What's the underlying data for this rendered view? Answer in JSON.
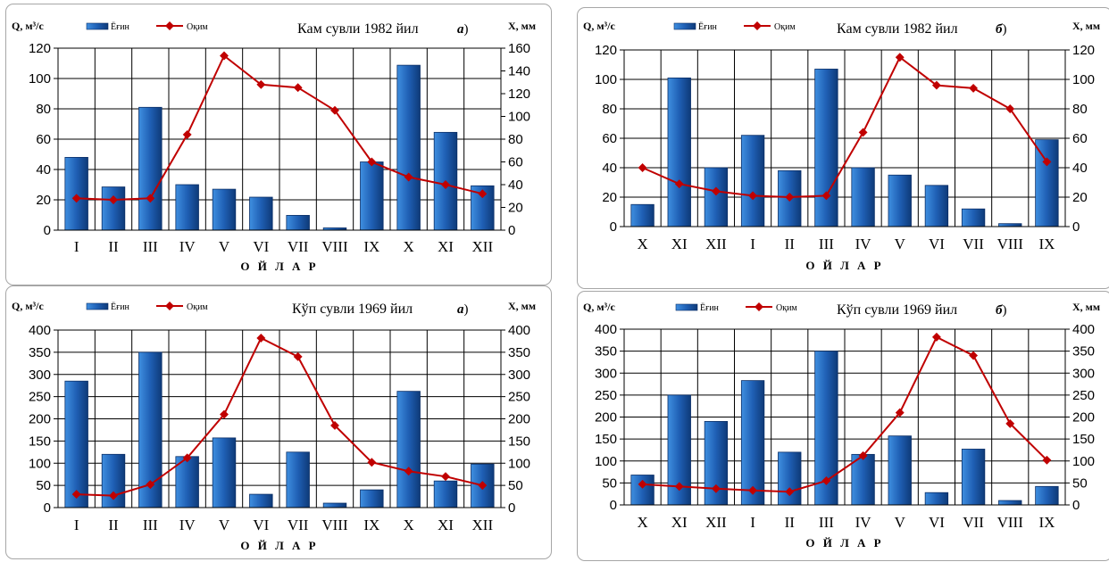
{
  "chart_data": [
    {
      "type": "bar",
      "title": "Кам сувли 1982 йил",
      "tag": "а",
      "ylabel_left": "Q, м³/с",
      "ylabel_right": "X, мм",
      "xlabel": "О Й Л А Р",
      "categories": [
        "I",
        "II",
        "III",
        "IV",
        "V",
        "VI",
        "VII",
        "VIII",
        "IX",
        "X",
        "XI",
        "XII"
      ],
      "ylim_left": [
        0,
        120
      ],
      "yticks_left": [
        0,
        20,
        40,
        60,
        80,
        100,
        120
      ],
      "ylim_right": [
        0,
        160
      ],
      "yticks_right": [
        0,
        20,
        40,
        60,
        80,
        100,
        120,
        140,
        160
      ],
      "grid": true,
      "legend_position": "top-left",
      "series": [
        {
          "name": "Ёғин",
          "type": "bar",
          "axis": "right",
          "color": "#1f5fb4",
          "values": [
            64,
            38,
            108,
            40,
            36,
            29,
            13,
            2,
            60,
            145,
            86,
            39
          ]
        },
        {
          "name": "Оқим",
          "type": "line",
          "axis": "left",
          "color": "#c00000",
          "values": [
            21,
            20,
            21,
            63,
            115,
            96,
            94,
            79,
            45,
            35,
            30,
            24
          ]
        }
      ]
    },
    {
      "type": "bar",
      "title": "Кам сувли 1982 йил",
      "tag": "б",
      "ylabel_left": "Q, м³/с",
      "ylabel_right": "X, мм",
      "xlabel": "О Й Л А Р",
      "categories": [
        "X",
        "XI",
        "XII",
        "I",
        "II",
        "III",
        "IV",
        "V",
        "VI",
        "VII",
        "VIII",
        "IX"
      ],
      "ylim_left": [
        0,
        120
      ],
      "yticks_left": [
        0,
        20,
        40,
        60,
        80,
        100,
        120
      ],
      "ylim_right": [
        0,
        120
      ],
      "yticks_right": [
        0,
        20,
        40,
        60,
        80,
        100,
        120
      ],
      "grid": true,
      "legend_position": "top-left",
      "series": [
        {
          "name": "Ёғин",
          "type": "bar",
          "axis": "right",
          "color": "#1f5fb4",
          "values": [
            15,
            101,
            40,
            62,
            38,
            107,
            40,
            35,
            28,
            12,
            2,
            59
          ]
        },
        {
          "name": "Оқим",
          "type": "line",
          "axis": "left",
          "color": "#c00000",
          "values": [
            40,
            29,
            24,
            21,
            20,
            21,
            64,
            115,
            96,
            94,
            80,
            44
          ]
        }
      ]
    },
    {
      "type": "bar",
      "title": "Кўп сувли 1969 йил",
      "tag": "а",
      "ylabel_left": "Q, м³/с",
      "ylabel_right": "X, мм",
      "xlabel": "О Й Л А Р",
      "categories": [
        "I",
        "II",
        "III",
        "IV",
        "V",
        "VI",
        "VII",
        "VIII",
        "IX",
        "X",
        "XI",
        "XII"
      ],
      "ylim_left": [
        0,
        400
      ],
      "yticks_left": [
        0,
        50,
        100,
        150,
        200,
        250,
        300,
        350,
        400
      ],
      "ylim_right": [
        0,
        400
      ],
      "yticks_right": [
        0,
        50,
        100,
        150,
        200,
        250,
        300,
        350,
        400
      ],
      "grid": true,
      "legend_position": "top-left",
      "series": [
        {
          "name": "Ёғин",
          "type": "bar",
          "axis": "right",
          "color": "#1f5fb4",
          "values": [
            285,
            120,
            350,
            115,
            157,
            30,
            125,
            10,
            40,
            262,
            60,
            98
          ]
        },
        {
          "name": "Оқим",
          "type": "line",
          "axis": "left",
          "color": "#c00000",
          "values": [
            30,
            27,
            52,
            112,
            210,
            382,
            340,
            185,
            102,
            82,
            70,
            50
          ]
        }
      ]
    },
    {
      "type": "bar",
      "title": "Кўп сувли 1969 йил",
      "tag": "б",
      "ylabel_left": "Q, м³/с",
      "ylabel_right": "X, мм",
      "xlabel": "О Й Л А Р",
      "categories": [
        "X",
        "XI",
        "XII",
        "I",
        "II",
        "III",
        "IV",
        "V",
        "VI",
        "VII",
        "VIII",
        "IX"
      ],
      "ylim_left": [
        0,
        400
      ],
      "yticks_left": [
        0,
        50,
        100,
        150,
        200,
        250,
        300,
        350,
        400
      ],
      "ylim_right": [
        0,
        400
      ],
      "yticks_right": [
        0,
        50,
        100,
        150,
        200,
        250,
        300,
        350,
        400
      ],
      "grid": true,
      "legend_position": "top-left",
      "series": [
        {
          "name": "Ёғин",
          "type": "bar",
          "axis": "right",
          "color": "#1f5fb4",
          "values": [
            68,
            250,
            190,
            283,
            120,
            350,
            115,
            157,
            28,
            127,
            10,
            42
          ]
        },
        {
          "name": "Оқим",
          "type": "line",
          "axis": "left",
          "color": "#c00000",
          "values": [
            47,
            42,
            37,
            33,
            30,
            55,
            112,
            210,
            382,
            340,
            185,
            102
          ]
        }
      ]
    }
  ]
}
